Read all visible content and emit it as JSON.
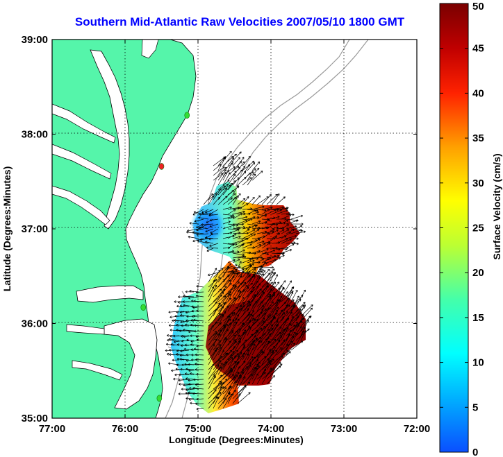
{
  "title": "Southern Mid-Atlantic Raw Velocities 2007/05/10 1800 GMT",
  "xlabel": "Longitude (Degrees:Minutes)",
  "ylabel": "Latitude (Degrees:Minutes)",
  "x_ticks": [
    "77:00",
    "76:00",
    "75:00",
    "74:00",
    "73:00",
    "72:00"
  ],
  "y_ticks": [
    "39:00",
    "38:00",
    "37:00",
    "36:00",
    "35:00"
  ],
  "colorbar": {
    "label": "Surface Velocity (cm/s)",
    "ticks": [
      "50",
      "45",
      "40",
      "35",
      "30",
      "25",
      "20",
      "15",
      "10",
      "5",
      "0"
    ]
  },
  "colors": {
    "land": "#55f5aa",
    "title": "#0000ff",
    "bathymetry": "#999999",
    "station_green": "#33dd33",
    "station_red": "#ee2222"
  },
  "map_extent": {
    "lon_west": 77.0,
    "lon_east": 72.0,
    "lat_south": 35.0,
    "lat_north": 39.0
  },
  "grid": "dotted",
  "stations": [
    {
      "lat": 38.2,
      "lon": 75.15,
      "color": "green"
    },
    {
      "lat": 37.66,
      "lon": 75.5,
      "color": "red"
    },
    {
      "lat": 36.17,
      "lon": 75.75,
      "color": "green"
    },
    {
      "lat": 35.21,
      "lon": 75.53,
      "color": "green"
    }
  ]
}
